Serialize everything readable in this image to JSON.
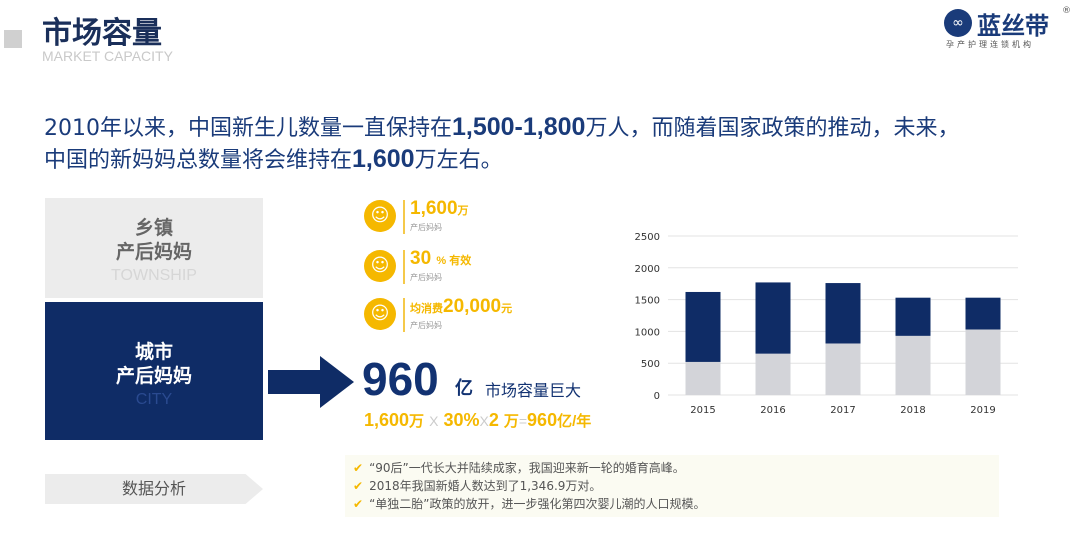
{
  "header": {
    "title": "市场容量",
    "subtitle": "MARKET CAPACITY"
  },
  "logo": {
    "name": "蓝丝带",
    "registered": "®",
    "tagline": "孕产护理连锁机构"
  },
  "intro": {
    "p1": "2010年以来，中国新生儿数量一直保持在",
    "n1": "1,500-1,800",
    "p2": "万人，而随着国家政策的推动，未来，",
    "p3": "中国的新妈妈总数量将会维持在",
    "n2": "1,600",
    "p4": "万左右。"
  },
  "segments": {
    "township": {
      "l1": "乡镇",
      "l2": "产后妈妈",
      "en": "TOWNSHIP"
    },
    "city": {
      "l1": "城市",
      "l2": "产后妈妈",
      "en": "CITY"
    }
  },
  "stats": [
    {
      "value": "1,600",
      "unit": "万",
      "label": "产后妈妈",
      "icon": "mother-icon"
    },
    {
      "value": "30",
      "unit": "% 有效",
      "label": "产后妈妈",
      "icon": "mother-icon"
    },
    {
      "prefix": "均消费",
      "value": "20,000",
      "unit": "元",
      "label": "产后妈妈",
      "icon": "mother-icon"
    }
  ],
  "market": {
    "value": "960",
    "unit": "亿",
    "text": "市场容量巨大",
    "formula": {
      "a": "1,600",
      "au": "万",
      "x1": "X",
      "b": "30%",
      "x2": "X",
      "c": "2",
      "cu": "万",
      "eq": "=",
      "r": "960",
      "ru": "亿/年"
    }
  },
  "analysis_label": "数据分析",
  "bullets": [
    "“90后”一代长大并陆续成家，我国迎来新一轮的婚育高峰。",
    "2018年我国新婚人数达到了1,346.9万对。",
    "“单独二胎”政策的放开，进一步强化第四次婴儿潮的人口规模。"
  ],
  "chart_data": {
    "type": "bar",
    "stacked": true,
    "categories": [
      "2015",
      "2016",
      "2017",
      "2018",
      "2019"
    ],
    "series": [
      {
        "values": [
          520,
          650,
          810,
          930,
          1030
        ],
        "color": "#d3d4d9"
      },
      {
        "values": [
          1100,
          1120,
          950,
          600,
          500
        ],
        "color": "#0f2c66"
      }
    ],
    "ylim": [
      0,
      2500
    ],
    "yticks": [
      0,
      500,
      1000,
      1500,
      2000,
      2500
    ],
    "grid": true
  }
}
